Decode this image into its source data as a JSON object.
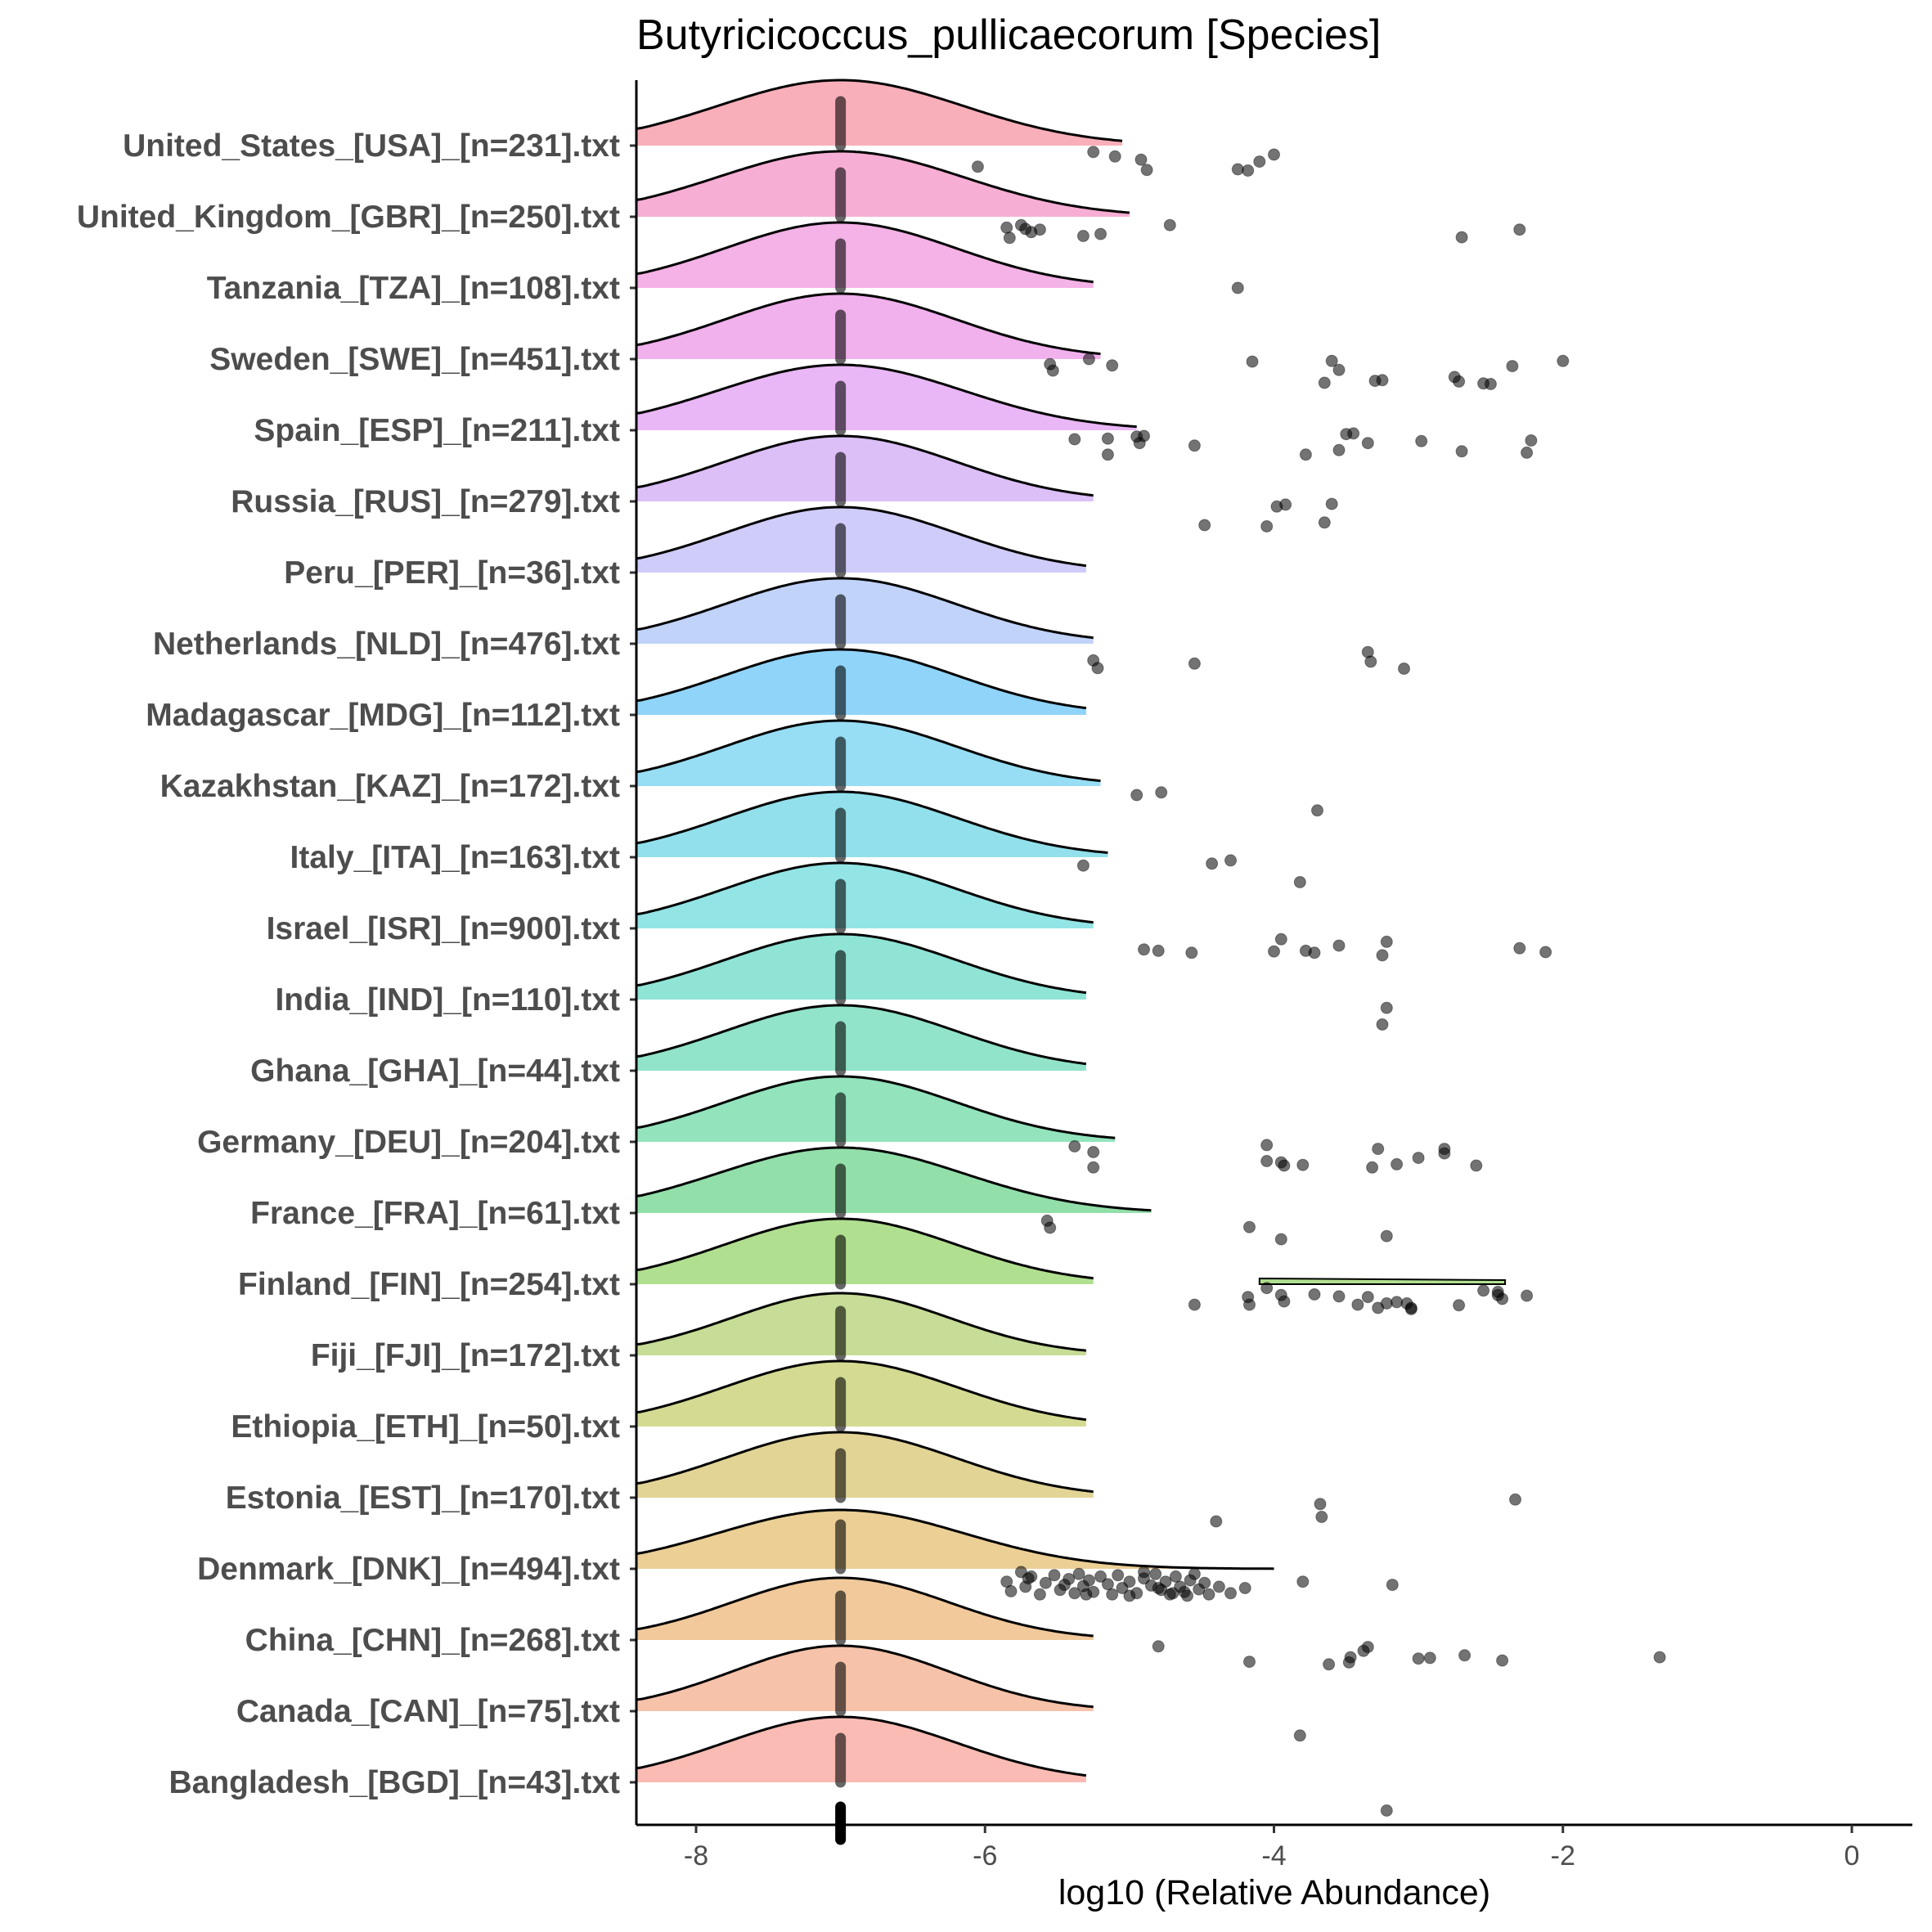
{
  "chart_data": {
    "type": "ridgeline",
    "title": "Butyricicoccus_pullicaecorum [Species]",
    "xlabel": "log10 (Relative Abundance)",
    "ylabel": "",
    "xlim": [
      -8.4,
      0.4
    ],
    "xticks": [
      -8,
      -6,
      -4,
      -2,
      0
    ],
    "median_marker": -7,
    "categories": [
      "United_States_[USA]_[n=231].txt",
      "United_Kingdom_[GBR]_[n=250].txt",
      "Tanzania_[TZA]_[n=108].txt",
      "Sweden_[SWE]_[n=451].txt",
      "Spain_[ESP]_[n=211].txt",
      "Russia_[RUS]_[n=279].txt",
      "Peru_[PER]_[n=36].txt",
      "Netherlands_[NLD]_[n=476].txt",
      "Madagascar_[MDG]_[n=112].txt",
      "Kazakhstan_[KAZ]_[n=172].txt",
      "Italy_[ITA]_[n=163].txt",
      "Israel_[ISR]_[n=900].txt",
      "India_[IND]_[n=110].txt",
      "Ghana_[GHA]_[n=44].txt",
      "Germany_[DEU]_[n=204].txt",
      "France_[FRA]_[n=61].txt",
      "Finland_[FIN]_[n=254].txt",
      "Fiji_[FJI]_[n=172].txt",
      "Ethiopia_[ETH]_[n=50].txt",
      "Estonia_[EST]_[n=170].txt",
      "Denmark_[DNK]_[n=494].txt",
      "China_[CHN]_[n=268].txt",
      "Canada_[CAN]_[n=75].txt",
      "Bangladesh_[BGD]_[n=43].txt"
    ],
    "colors": [
      "#F8A1AE",
      "#F6A0CC",
      "#F2A5E2",
      "#EEA3EA",
      "#E5AAF3",
      "#D6B4F6",
      "#C8C3F8",
      "#B6CBF8",
      "#7DCDF8",
      "#85D8F2",
      "#7FDAE8",
      "#80DFE0",
      "#7DDFCF",
      "#7EDFC0",
      "#80DEB1",
      "#80D99A",
      "#A3D97D",
      "#BDD684",
      "#CDD37F",
      "#DDCC82",
      "#E7C782",
      "#EFC08A",
      "#F4B79A",
      "#F8AFA6"
    ],
    "curves": [
      {
        "peak": -7.0,
        "sd": 0.85,
        "end": -5.05,
        "amp": 1.0
      },
      {
        "peak": -7.0,
        "sd": 0.85,
        "end": -5.0,
        "amp": 1.0
      },
      {
        "peak": -7.0,
        "sd": 0.8,
        "end": -5.25,
        "amp": 1.0
      },
      {
        "peak": -7.0,
        "sd": 0.8,
        "end": -5.2,
        "amp": 1.0
      },
      {
        "peak": -7.0,
        "sd": 0.85,
        "end": -4.95,
        "amp": 1.0
      },
      {
        "peak": -7.0,
        "sd": 0.8,
        "end": -5.25,
        "amp": 1.0
      },
      {
        "peak": -7.0,
        "sd": 0.8,
        "end": -5.3,
        "amp": 1.0
      },
      {
        "peak": -7.0,
        "sd": 0.8,
        "end": -5.25,
        "amp": 1.0
      },
      {
        "peak": -7.0,
        "sd": 0.8,
        "end": -5.3,
        "amp": 1.0
      },
      {
        "peak": -7.0,
        "sd": 0.8,
        "end": -5.2,
        "amp": 1.0
      },
      {
        "peak": -7.0,
        "sd": 0.8,
        "end": -5.15,
        "amp": 1.0
      },
      {
        "peak": -7.0,
        "sd": 0.8,
        "end": -5.25,
        "amp": 1.0
      },
      {
        "peak": -7.0,
        "sd": 0.8,
        "end": -5.3,
        "amp": 1.0
      },
      {
        "peak": -7.0,
        "sd": 0.8,
        "end": -5.3,
        "amp": 1.0
      },
      {
        "peak": -7.0,
        "sd": 0.8,
        "end": -5.1,
        "amp": 1.0
      },
      {
        "peak": -7.0,
        "sd": 0.85,
        "end": -4.85,
        "amp": 1.0
      },
      {
        "peak": -7.0,
        "sd": 0.8,
        "end": -5.25,
        "amp": 1.0
      },
      {
        "peak": -7.0,
        "sd": 0.75,
        "end": -5.3,
        "amp": 0.95
      },
      {
        "peak": -7.0,
        "sd": 0.8,
        "end": -5.3,
        "amp": 1.0
      },
      {
        "peak": -7.0,
        "sd": 0.8,
        "end": -5.25,
        "amp": 1.0
      },
      {
        "peak": -7.0,
        "sd": 0.85,
        "end": -4.0,
        "amp": 0.9
      },
      {
        "peak": -7.0,
        "sd": 0.75,
        "end": -5.25,
        "amp": 0.95
      },
      {
        "peak": -7.0,
        "sd": 0.75,
        "end": -5.25,
        "amp": 1.0
      },
      {
        "peak": -7.0,
        "sd": 0.8,
        "end": -5.3,
        "amp": 1.0
      }
    ],
    "ridge_secondary": [
      {
        "row": 16,
        "from": -4.1,
        "to": -2.4,
        "height": 0.08
      }
    ],
    "points": [
      {
        "row": 0,
        "x": [
          -6.05,
          -5.25,
          -5.1,
          -4.92,
          -4.88,
          -4.25,
          -4.18,
          -4.1,
          -4.0
        ],
        "dy": [
          0.33,
          0.1,
          0.17,
          0.22,
          0.38,
          0.37,
          0.39,
          0.25,
          0.14
        ]
      },
      {
        "row": 1,
        "x": [
          -5.85,
          -5.83,
          -5.75,
          -5.72,
          -5.68,
          -5.62,
          -5.32,
          -5.2,
          -4.72,
          -2.7,
          -2.3
        ],
        "dy": [
          0.17,
          0.33,
          0.13,
          0.19,
          0.24,
          0.2,
          0.3,
          0.27,
          0.13,
          0.32,
          0.2
        ]
      },
      {
        "row": 2,
        "x": [
          -4.25
        ],
        "dy": 0.0
      },
      {
        "row": 3,
        "x": [
          -5.55,
          -5.53,
          -5.28,
          -5.12,
          -4.15,
          -3.6,
          -3.55,
          -3.65,
          -3.3,
          -3.25,
          -2.75,
          -2.72,
          -2.55,
          -2.5,
          -2.35,
          -2.0
        ],
        "dy": [
          0.08,
          0.18,
          0.0,
          0.1,
          0.04,
          0.03,
          0.17,
          0.37,
          0.34,
          0.33,
          0.28,
          0.35,
          0.38,
          0.39,
          0.11,
          0.03
        ]
      },
      {
        "row": 4,
        "x": [
          -5.38,
          -5.15,
          -5.15,
          -4.95,
          -4.9,
          -4.93,
          -4.55,
          -3.78,
          -3.55,
          -3.5,
          -3.45,
          -3.35,
          -2.98,
          -2.7,
          -2.22,
          -2.25
        ],
        "dy": [
          0.14,
          0.13,
          0.38,
          0.1,
          0.09,
          0.2,
          0.24,
          0.38,
          0.31,
          0.06,
          0.05,
          0.2,
          0.17,
          0.33,
          0.16,
          0.35
        ]
      },
      {
        "row": 5,
        "x": [
          -4.48,
          -4.05,
          -3.98,
          -3.92,
          -3.65,
          -3.6
        ],
        "dy": [
          0.37,
          0.39,
          0.08,
          0.05,
          0.33,
          0.04
        ]
      },
      {
        "row": 7,
        "x": [
          -5.25,
          -5.22,
          -4.55,
          -3.35,
          -3.33,
          -3.1
        ],
        "dy": [
          0.26,
          0.38,
          0.31,
          0.13,
          0.28,
          0.39
        ]
      },
      {
        "row": 9,
        "x": [
          -4.95,
          -4.78,
          -3.7
        ],
        "dy": [
          0.14,
          0.1,
          0.38
        ]
      },
      {
        "row": 10,
        "x": [
          -5.32,
          -4.43,
          -4.3,
          -3.82
        ],
        "dy": [
          0.13,
          0.1,
          0.05,
          0.39
        ]
      },
      {
        "row": 11,
        "x": [
          -4.9,
          -4.8,
          -4.57,
          -4.0,
          -3.95,
          -3.78,
          -3.72,
          -3.55,
          -3.25,
          -3.22,
          -2.3,
          -2.12
        ],
        "dy": [
          0.33,
          0.35,
          0.38,
          0.36,
          0.17,
          0.35,
          0.38,
          0.27,
          0.42,
          0.21,
          0.31,
          0.37
        ]
      },
      {
        "row": 12,
        "x": [
          -3.22,
          -3.25
        ],
        "dy": [
          0.13,
          0.39
        ]
      },
      {
        "row": 14,
        "x": [
          -5.38,
          -5.25,
          -5.25,
          -4.05,
          -4.05,
          -3.95,
          -3.93,
          -3.8,
          -3.28,
          -3.32,
          -3.15,
          -3.0,
          -2.82,
          -2.82,
          -2.6
        ],
        "dy": [
          0.07,
          0.16,
          0.4,
          0.05,
          0.3,
          0.32,
          0.37,
          0.36,
          0.11,
          0.4,
          0.35,
          0.25,
          0.11,
          0.18,
          0.37
        ]
      },
      {
        "row": 15,
        "x": [
          -5.57,
          -5.55,
          -4.17,
          -3.95,
          -3.22
        ],
        "dy": [
          0.12,
          0.23,
          0.22,
          0.41,
          0.36
        ]
      },
      {
        "row": 16,
        "x": [
          -4.55,
          -4.18,
          -4.17,
          -4.05,
          -3.95,
          -3.93,
          -3.72,
          -3.55,
          -3.42,
          -3.35,
          -3.28,
          -3.22,
          -3.15,
          -3.05,
          -3.08,
          -3.05,
          -2.72,
          -2.55,
          -2.45,
          -2.42,
          -2.25,
          -2.45
        ],
        "dy": [
          0.32,
          0.2,
          0.32,
          0.06,
          0.17,
          0.27,
          0.16,
          0.19,
          0.32,
          0.2,
          0.37,
          0.3,
          0.28,
          0.37,
          0.3,
          0.39,
          0.33,
          0.1,
          0.12,
          0.23,
          0.18,
          0.17
        ]
      },
      {
        "row": 19,
        "x": [
          -4.4,
          -3.68,
          -3.67,
          -2.33
        ],
        "dy": [
          0.37,
          0.1,
          0.3,
          0.03
        ]
      },
      {
        "row": 20,
        "x": [
          -5.85,
          -5.82,
          -5.75,
          -5.72,
          -5.68,
          -5.62,
          -5.58,
          -5.52,
          -5.48,
          -5.42,
          -5.38,
          -5.35,
          -5.32,
          -5.28,
          -5.25,
          -5.2,
          -5.15,
          -5.12,
          -5.08,
          -5.05,
          -5.0,
          -4.95,
          -4.9,
          -4.85,
          -4.82,
          -4.78,
          -4.75,
          -4.72,
          -4.68,
          -4.65,
          -4.62,
          -4.58,
          -4.55,
          -4.52,
          -4.48,
          -4.45,
          -4.38,
          -4.3,
          -4.2,
          -3.8,
          -3.18,
          -5.7,
          -5.45,
          -5.3,
          -5.0,
          -4.9,
          -4.8,
          -4.7,
          -4.6
        ],
        "dy": [
          0.2,
          0.35,
          0.05,
          0.28,
          0.12,
          0.4,
          0.22,
          0.1,
          0.33,
          0.16,
          0.38,
          0.08,
          0.27,
          0.18,
          0.36,
          0.12,
          0.24,
          0.4,
          0.1,
          0.3,
          0.2,
          0.38,
          0.15,
          0.26,
          0.08,
          0.33,
          0.2,
          0.4,
          0.12,
          0.28,
          0.36,
          0.18,
          0.08,
          0.32,
          0.22,
          0.4,
          0.28,
          0.38,
          0.3,
          0.2,
          0.25,
          0.15,
          0.25,
          0.4,
          0.42,
          0.05,
          0.3,
          0.38,
          0.42
        ]
      },
      {
        "row": 21,
        "x": [
          -4.8,
          -4.17,
          -3.62,
          -3.48,
          -3.47,
          -3.38,
          -3.35,
          -3.0,
          -2.92,
          -2.68,
          -2.42,
          -1.33
        ],
        "dy": [
          0.1,
          0.34,
          0.38,
          0.35,
          0.27,
          0.17,
          0.11,
          0.29,
          0.28,
          0.24,
          0.32,
          0.27
        ]
      },
      {
        "row": 22,
        "x": [
          -3.82
        ],
        "dy": 0.38
      },
      {
        "row": 23,
        "x": [
          -3.22
        ],
        "dy": 0.44
      }
    ]
  }
}
